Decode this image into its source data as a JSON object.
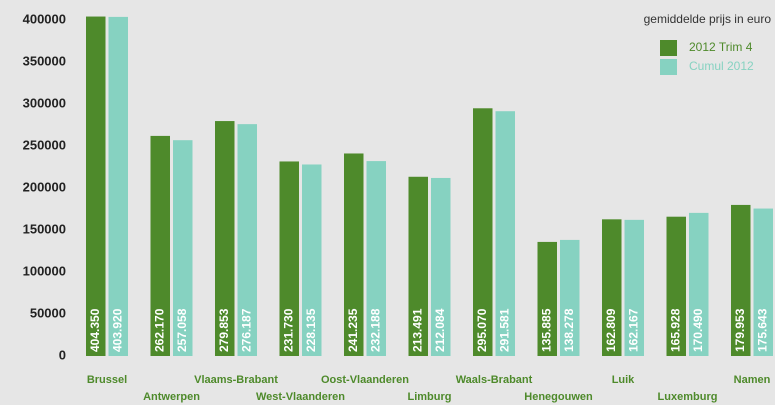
{
  "chart_data": {
    "type": "bar",
    "legend_title": "gemiddelde prijs in euro",
    "legend_position": "upper right",
    "categories": [
      "Brussel",
      "Antwerpen",
      "Vlaams-Brabant",
      "West-Vlaanderen",
      "Oost-Vlaanderen",
      "Limburg",
      "Waals-Brabant",
      "Henegouwen",
      "Luik",
      "Luxemburg",
      "Namen"
    ],
    "series": [
      {
        "name": "2012 Trim 4",
        "color": "#4e8a2b",
        "values": [
          404350,
          262170,
          279853,
          231730,
          241235,
          213491,
          295070,
          135885,
          162809,
          165928,
          179953
        ],
        "value_labels": [
          "404.350",
          "262.170",
          "279.853",
          "231.730",
          "241.235",
          "213.491",
          "295.070",
          "135.885",
          "162.809",
          "165.928",
          "179.953"
        ]
      },
      {
        "name": "Cumul 2012",
        "color": "#86d2c1",
        "values": [
          403920,
          257058,
          276187,
          228135,
          232188,
          212084,
          291581,
          138278,
          162167,
          170490,
          175643
        ],
        "value_labels": [
          "403.920",
          "257.058",
          "276.187",
          "228.135",
          "232.188",
          "212.084",
          "291.581",
          "138.278",
          "162.167",
          "170.490",
          "175.643"
        ]
      }
    ],
    "ylim": [
      0,
      405000
    ],
    "yticks": [
      0,
      50000,
      100000,
      150000,
      200000,
      250000,
      300000,
      350000,
      400000
    ]
  }
}
